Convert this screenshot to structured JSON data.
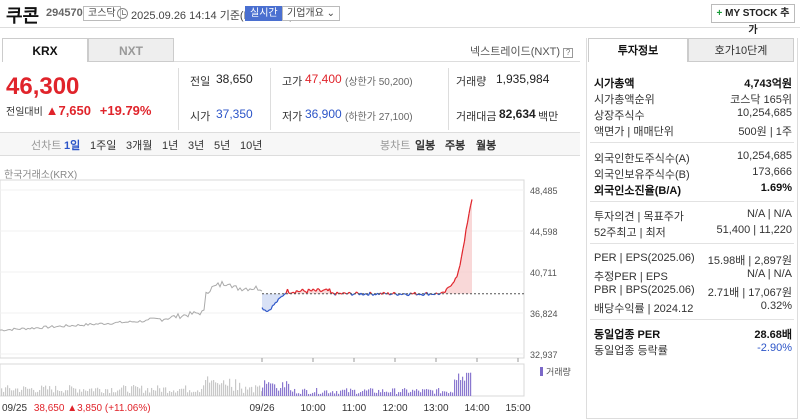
{
  "header": {
    "name": "쿠콘",
    "code": "294570",
    "market": "코스닥",
    "datetime": "2025.09.26 14:14  기준(KRX 장중)",
    "realtime": "실시간",
    "overview": "기업개요 ⌄",
    "mystock": "MY STOCK 추가"
  },
  "tabs": {
    "krx": "KRX",
    "nxt": "NXT",
    "nextrade": "넥스트레이드(NXT)"
  },
  "price": {
    "current": "46,300",
    "change_label": "전일대비",
    "change": "▲7,650",
    "change_pct": "+19.79%"
  },
  "quote": {
    "prev_label": "전일",
    "prev": "38,650",
    "high_label": "고가",
    "high": "47,400",
    "upper_limit": "(상한가 50,200)",
    "volume_label": "거래량",
    "volume": "1,935,984",
    "open_label": "시가",
    "open": "37,350",
    "low_label": "저가",
    "low": "36,900",
    "lower_limit": "(하한가 27,100)",
    "amount_label": "거래대금",
    "amount": "82,634",
    "amount_unit": "백만"
  },
  "period": {
    "line_label": "선차트",
    "line_periods": [
      "1일",
      "1주일",
      "3개월",
      "1년",
      "3년",
      "5년",
      "10년"
    ],
    "active": "1일",
    "candle_label": "봉차트",
    "candle_periods": [
      "일봉",
      "주봉",
      "월봉"
    ]
  },
  "chart": {
    "exchange": "한국거래소(KRX)",
    "y_ticks": [
      "48,485",
      "44,598",
      "40,711",
      "36,824",
      "32,937"
    ],
    "x_ticks": [
      "09/26",
      "10:00",
      "11:00",
      "12:00",
      "13:00",
      "14:00",
      "15:00"
    ],
    "volume_label": "거래량",
    "prev_date": "09/25",
    "prev_close": "38,650",
    "prev_change": "▲3,850",
    "prev_change_pct": "(+11.06%)",
    "prev_close_line": 38650,
    "ymin": 32937,
    "ymax": 48485,
    "colors": {
      "up": "#e0242b",
      "down": "#2c55c8",
      "prev_day": "#aaaaaa",
      "up_fill": "#f7c8c8",
      "down_fill": "#c8d4f2"
    }
  },
  "investment": {
    "tab_active": "투자정보",
    "tab_other": "호가10단계",
    "rows1": [
      {
        "label": "시가총액",
        "value": "4,743억원",
        "bold": true
      },
      {
        "label": "시가총액순위",
        "value": "코스닥 165위"
      },
      {
        "label": "상장주식수",
        "value": "10,254,685"
      },
      {
        "label": "액면가 | 매매단위",
        "value": "500원 | 1주"
      }
    ],
    "rows2": [
      {
        "label": "외국인한도주식수(A)",
        "value": "10,254,685"
      },
      {
        "label": "외국인보유주식수(B)",
        "value": "173,666"
      },
      {
        "label": "외국인소진율(B/A)",
        "value": "1.69%",
        "bold": true
      }
    ],
    "rows3": [
      {
        "label": "투자의견 | 목표주가",
        "value": "N/A | N/A"
      },
      {
        "label": "52주최고 | 최저",
        "value": "51,400 | 11,220"
      }
    ],
    "rows4": [
      {
        "label": "PER | EPS(2025.06)",
        "value": "15.98배 | 2,897원"
      },
      {
        "label": "추정PER | EPS",
        "value": "N/A | N/A"
      },
      {
        "label": "PBR | BPS(2025.06)",
        "value": "2.71배 | 17,067원"
      },
      {
        "label": "배당수익률 | 2024.12",
        "value": "0.32%"
      }
    ],
    "rows5": [
      {
        "label": "동일업종 PER",
        "value": "28.68배",
        "bold": true
      },
      {
        "label": "동일업종 등락률",
        "value": "-2.90%",
        "blue": true
      }
    ]
  }
}
